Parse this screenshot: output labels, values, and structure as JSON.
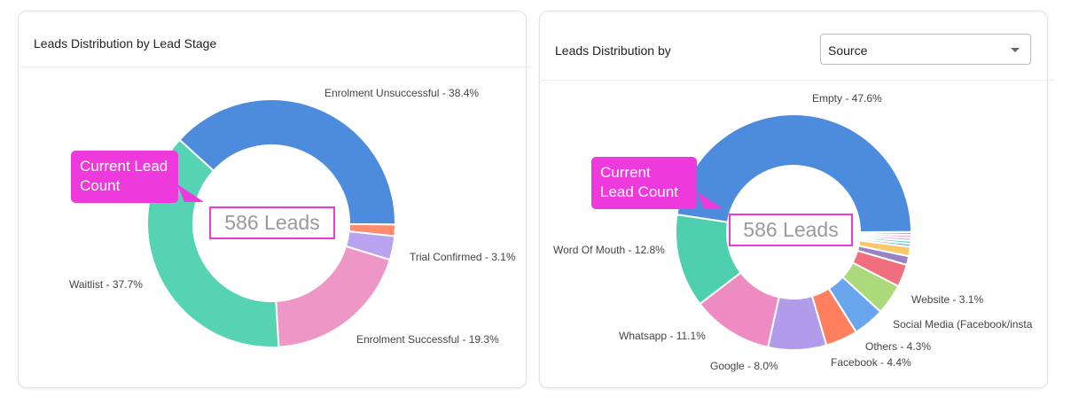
{
  "left": {
    "title": "Leads Distribution by Lead Stage",
    "callout": "Current Lead Count",
    "center_label": "586 Leads"
  },
  "right": {
    "title": "Leads Distribution by",
    "select_value": "Source",
    "callout": "Current Lead Count",
    "center_label": "586 Leads"
  },
  "chart_data": [
    {
      "type": "pie",
      "donut": true,
      "title": "Leads Distribution by Lead Stage",
      "slices": [
        {
          "name": "Enrolment Unsuccessful",
          "value": 38.4,
          "label": "Enrolment Unsuccessful - 38.4%",
          "color": "#4d8bdd"
        },
        {
          "name": "",
          "value": 1.5,
          "label": "",
          "color": "#ff8c6e"
        },
        {
          "name": "Trial Confirmed",
          "value": 3.1,
          "label": "Trial Confirmed - 3.1%",
          "color": "#b9a2ee"
        },
        {
          "name": "Enrolment Successful",
          "value": 19.3,
          "label": "Enrolment Successful - 19.3%",
          "color": "#ee96c6"
        },
        {
          "name": "Waitlist",
          "value": 37.7,
          "label": "Waitlist - 37.7%",
          "color": "#56d3b3"
        }
      ]
    },
    {
      "type": "pie",
      "donut": true,
      "title": "Leads Distribution by Source",
      "slices": [
        {
          "name": "Empty",
          "value": 47.6,
          "label": "Empty - 47.6%",
          "color": "#4d8bdd"
        },
        {
          "name": "",
          "value": 0.4,
          "label": "",
          "color": "#ff9a80"
        },
        {
          "name": "",
          "value": 0.4,
          "label": "",
          "color": "#f7a8d8"
        },
        {
          "name": "",
          "value": 0.4,
          "label": "",
          "color": "#c9a8f0"
        },
        {
          "name": "",
          "value": 0.4,
          "label": "",
          "color": "#5fd6b0"
        },
        {
          "name": "",
          "value": 0.4,
          "label": "",
          "color": "#6aa8ee"
        },
        {
          "name": "",
          "value": 1.3,
          "label": "",
          "color": "#f8c86b"
        },
        {
          "name": "",
          "value": 1.2,
          "label": "",
          "color": "#9a82c8"
        },
        {
          "name": "Website",
          "value": 3.1,
          "label": "Website - 3.1%",
          "color": "#f06e7e"
        },
        {
          "name": "Social Media (Facebook/insta",
          "value": 4.2,
          "label": "Social Media (Facebook/insta",
          "color": "#acd97a"
        },
        {
          "name": "Others",
          "value": 4.3,
          "label": "Others - 4.3%",
          "color": "#6aa6ee"
        },
        {
          "name": "Facebook",
          "value": 4.4,
          "label": "Facebook - 4.4%",
          "color": "#ff7f5e"
        },
        {
          "name": "Google",
          "value": 8.0,
          "label": "Google - 8.0%",
          "color": "#b39bec"
        },
        {
          "name": "Whatsapp",
          "value": 11.1,
          "label": "Whatsapp - 11.1%",
          "color": "#ee8bc3"
        },
        {
          "name": "Word Of Mouth",
          "value": 12.8,
          "label": "Word Of Mouth - 12.8%",
          "color": "#4ecfae"
        }
      ]
    }
  ]
}
